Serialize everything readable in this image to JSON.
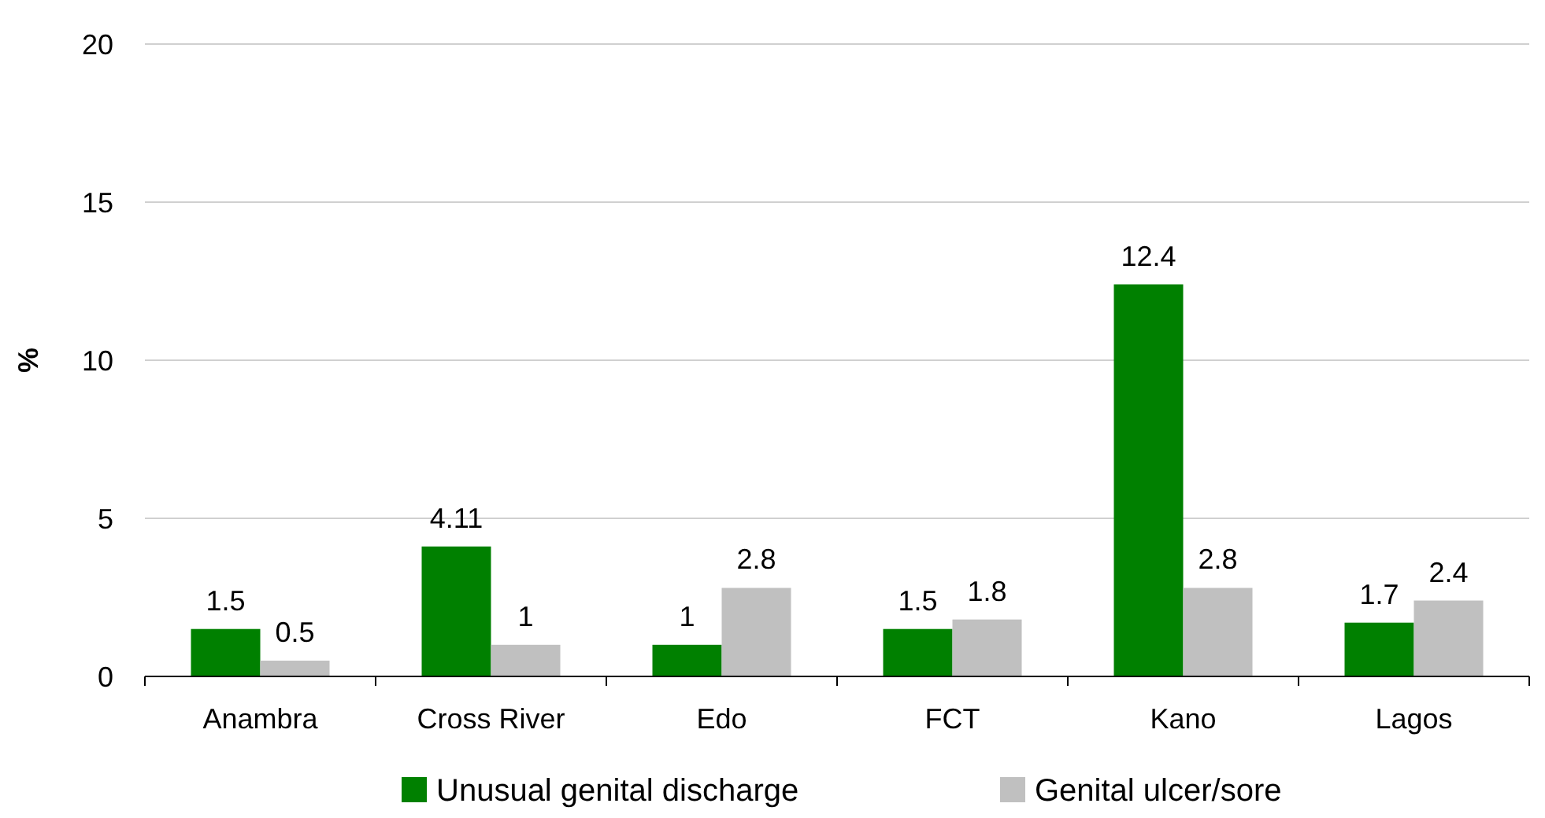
{
  "chart_data": {
    "type": "bar",
    "ylabel": "%",
    "categories": [
      "Anambra",
      "Cross River",
      "Edo",
      "FCT",
      "Kano",
      "Lagos"
    ],
    "series": [
      {
        "name": "Unusual genital discharge",
        "color": "#008000",
        "values": [
          1.5,
          4.11,
          1,
          1.5,
          12.4,
          1.7
        ]
      },
      {
        "name": "Genital ulcer/sore",
        "color": "#c0c0c0",
        "values": [
          0.5,
          1,
          2.8,
          1.8,
          2.8,
          2.4
        ]
      }
    ],
    "ylim": [
      0,
      20
    ],
    "yticks": [
      0,
      5,
      10,
      15,
      20
    ],
    "grid": "y",
    "legend": "bottom",
    "data_labels": true
  }
}
